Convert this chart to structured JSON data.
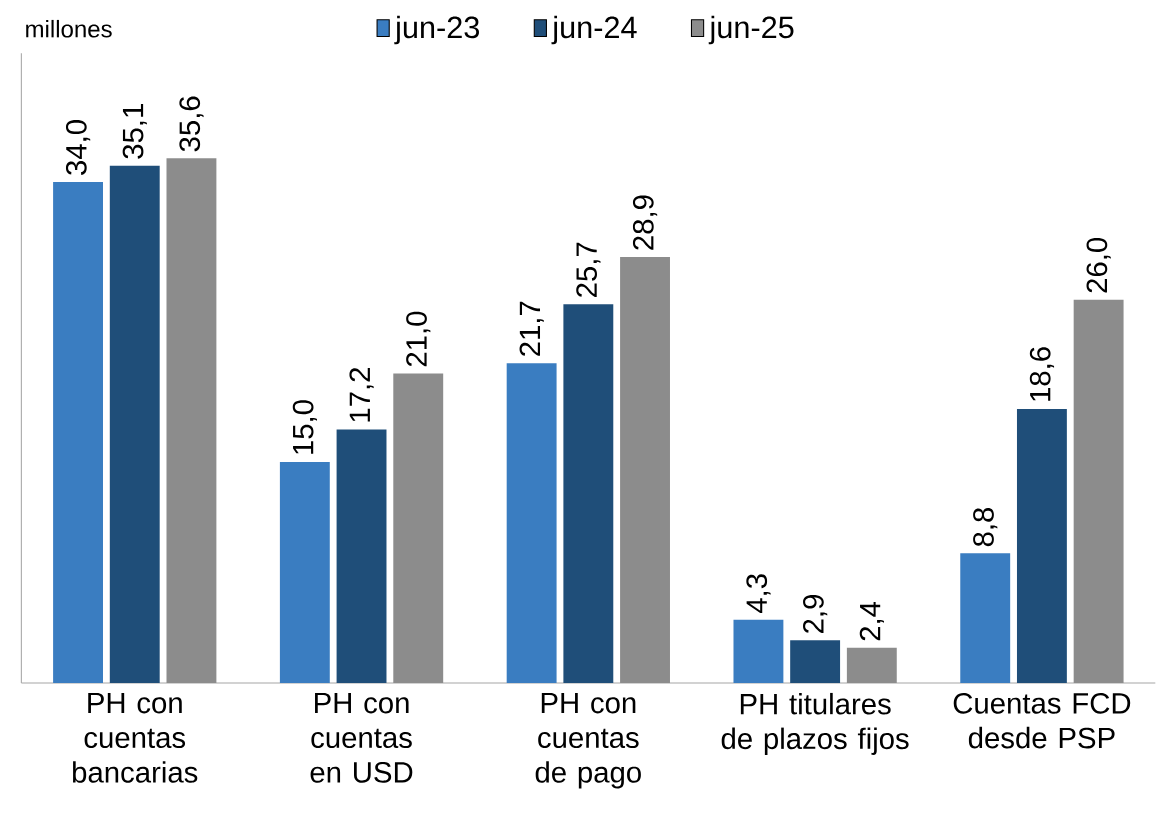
{
  "chart_data": {
    "type": "bar",
    "annotations": [
      "millones"
    ],
    "categories": [
      "PH con cuentas bancarias",
      "PH con cuentas en USD",
      "PH con cuentas de pago",
      "PH titulares de plazos fijos",
      "Cuentas FCD desde PSP"
    ],
    "series": [
      {
        "name": "jun-23",
        "color": "#3a7dc1",
        "values": [
          34.0,
          15.0,
          21.7,
          4.3,
          8.8
        ],
        "value_labels": [
          "34,0",
          "15,0",
          "21,7",
          "4,3",
          "8,8"
        ]
      },
      {
        "name": "jun-24",
        "color": "#1f4e79",
        "values": [
          35.1,
          17.2,
          25.7,
          2.9,
          18.6
        ],
        "value_labels": [
          "35,1",
          "17,2",
          "25,7",
          "2,9",
          "18,6"
        ]
      },
      {
        "name": "jun-25",
        "color": "#8c8c8c",
        "values": [
          35.6,
          21.0,
          28.9,
          2.4,
          26.0
        ],
        "value_labels": [
          "35,6",
          "21,0",
          "28,9",
          "2,4",
          "26,0"
        ]
      }
    ],
    "legend": "top"
  }
}
